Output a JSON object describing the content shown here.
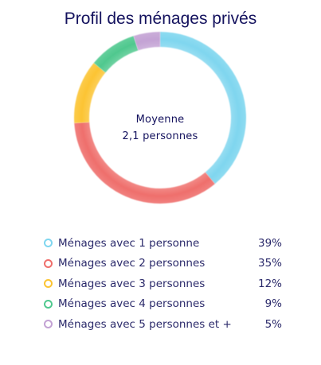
{
  "chart_data": {
    "type": "pie",
    "variant": "donut",
    "title": "Profil des ménages privés",
    "center": {
      "line1": "Moyenne",
      "line2": "2,1 personnes"
    },
    "categories": [
      "Ménages avec 1 personne",
      "Ménages avec 2 personnes",
      "Ménages avec 3 personnes",
      "Ménages avec 4 personnes",
      "Ménages avec 5 personnes et +"
    ],
    "values": [
      39,
      35,
      12,
      9,
      5
    ],
    "value_labels": [
      "39%",
      "35%",
      "12%",
      "9%",
      "5%"
    ],
    "colors": [
      "#7fd6ef",
      "#ef6f6c",
      "#fcc433",
      "#4fc88e",
      "#c3a2d4"
    ],
    "legend_position": "bottom"
  }
}
